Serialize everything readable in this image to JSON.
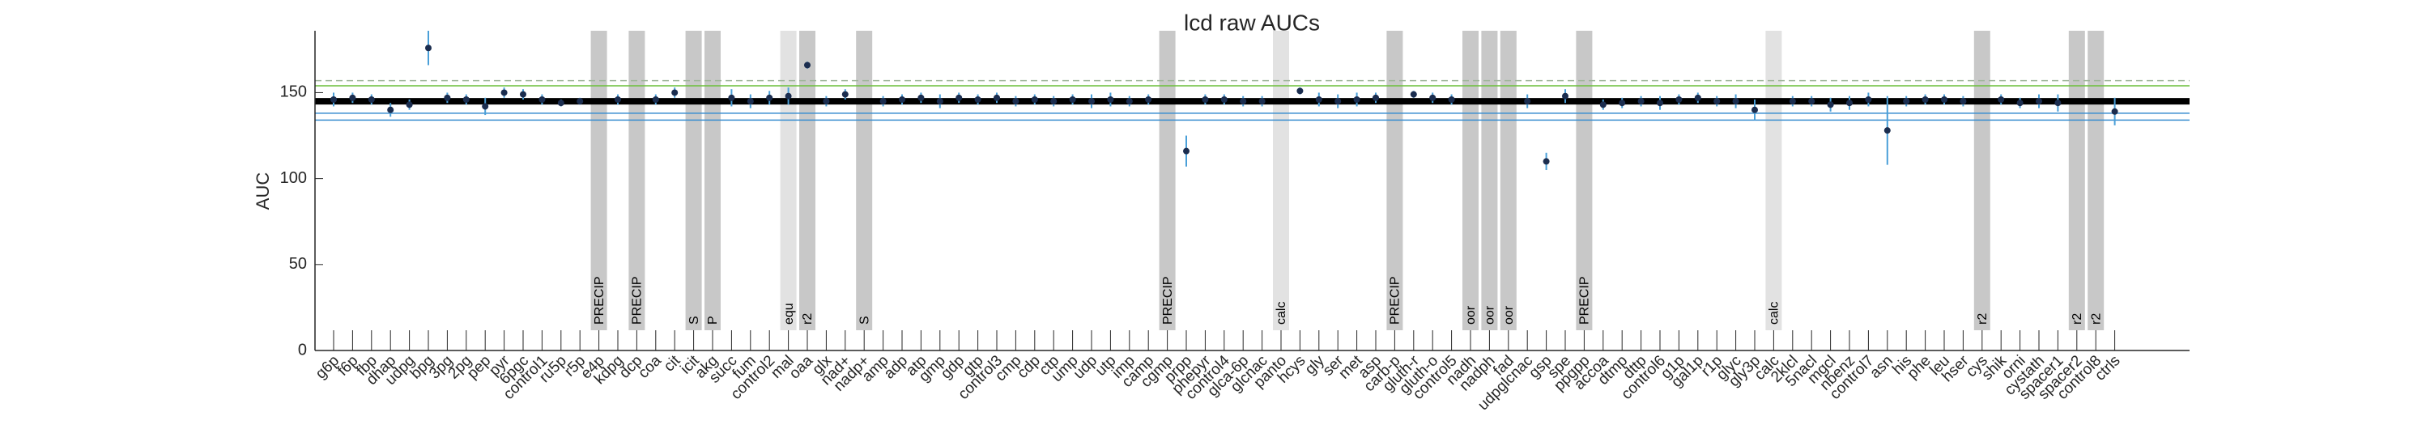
{
  "chart_data": {
    "type": "errorbar",
    "title": "lcd raw AUCs",
    "ylabel": "AUC",
    "categories": [
      "g6p",
      "f6p",
      "fbp",
      "dhap",
      "udpg",
      "bpg",
      "3pg",
      "2pg",
      "pep",
      "pyr",
      "6pgc",
      "control1",
      "ru5p",
      "r5p",
      "e4p",
      "kdpg",
      "dcp",
      "coa",
      "cit",
      "icit",
      "akg",
      "succ",
      "fum",
      "control2",
      "mal",
      "oaa",
      "glx",
      "nad+",
      "nadp+",
      "amp",
      "adp",
      "atp",
      "gmp",
      "gdp",
      "gtp",
      "control3",
      "cmp",
      "cdp",
      "ctp",
      "ump",
      "udp",
      "utp",
      "imp",
      "camp",
      "cgmp",
      "prpp",
      "phepyr",
      "control4",
      "glca-6p",
      "glcnac",
      "panto",
      "hcys",
      "gly",
      "ser",
      "met",
      "asp",
      "carb-p",
      "gluth-r",
      "gluth-o",
      "control5",
      "nadh",
      "nadph",
      "fad",
      "udpglcnac",
      "gsp",
      "spe",
      "ppgpp",
      "accoa",
      "dtmp",
      "dttp",
      "control6",
      "g1p",
      "gal1p",
      "r1p",
      "glyc",
      "gly3p",
      "calc",
      "2klcl",
      "5nacl",
      "mgcl",
      "nbenz",
      "control7",
      "asn",
      "his",
      "phe",
      "leu",
      "hser",
      "cys",
      "shik",
      "orni",
      "cystath",
      "spacer1",
      "spacer2",
      "control8",
      "ctrls"
    ],
    "values": [
      146,
      147,
      146,
      140,
      143,
      176,
      147,
      146,
      142,
      150,
      149,
      146,
      144,
      145,
      null,
      146,
      null,
      146,
      150,
      null,
      null,
      147,
      145,
      147,
      148,
      166,
      145,
      149,
      null,
      145,
      146,
      147,
      145,
      147,
      146,
      147,
      145,
      146,
      145,
      146,
      145,
      146,
      145,
      146,
      null,
      116,
      146,
      146,
      145,
      145,
      null,
      151,
      146,
      145,
      146,
      147,
      null,
      149,
      147,
      146,
      null,
      null,
      null,
      145,
      110,
      148,
      null,
      143,
      144,
      145,
      144,
      146,
      147,
      145,
      145,
      140,
      null,
      145,
      145,
      143,
      144,
      146,
      128,
      145,
      146,
      146,
      145,
      null,
      146,
      144,
      145,
      144,
      null,
      null,
      139
    ],
    "errors": [
      4,
      3,
      3,
      4,
      3,
      10,
      3,
      3,
      5,
      3,
      3,
      3,
      2,
      2,
      null,
      3,
      null,
      3,
      3,
      null,
      null,
      5,
      4,
      4,
      5,
      2,
      3,
      3,
      null,
      3,
      3,
      3,
      4,
      3,
      3,
      3,
      3,
      3,
      3,
      3,
      4,
      4,
      3,
      3,
      null,
      9,
      3,
      3,
      3,
      3,
      null,
      2,
      4,
      4,
      4,
      3,
      null,
      2,
      3,
      3,
      null,
      null,
      null,
      4,
      5,
      4,
      null,
      3,
      3,
      3,
      4,
      3,
      3,
      3,
      4,
      6,
      null,
      3,
      3,
      4,
      4,
      4,
      20,
      3,
      3,
      3,
      3,
      null,
      3,
      3,
      4,
      5,
      null,
      null,
      8
    ],
    "marker_color": "#1b2d4f",
    "errorbar_color": "#4a9fd8",
    "reference_lines": [
      {
        "value": 157,
        "color": "#9fb59a",
        "style": "dashed"
      },
      {
        "value": 154,
        "color": "#6cbf3a",
        "style": "solid"
      },
      {
        "value": 145,
        "color": "#000000",
        "style": "thick"
      },
      {
        "value": 138,
        "color": "#3b8fd0",
        "style": "solid"
      },
      {
        "value": 134,
        "color": "#3b8fd0",
        "style": "solid"
      }
    ],
    "band_annotations": [
      {
        "category": "e4p",
        "text": "PRECIP",
        "color": "#c8c8c8"
      },
      {
        "category": "dcp",
        "text": "PRECIP",
        "color": "#c8c8c8"
      },
      {
        "category": "icit",
        "text": "S",
        "color": "#c8c8c8"
      },
      {
        "category": "akg",
        "text": "P",
        "color": "#c8c8c8"
      },
      {
        "category": "mal",
        "text": "equ",
        "color": "#e2e2e2"
      },
      {
        "category": "oaa",
        "text": "r2",
        "color": "#c8c8c8"
      },
      {
        "category": "nadp+",
        "text": "S",
        "color": "#c8c8c8"
      },
      {
        "category": "cgmp",
        "text": "PRECIP",
        "color": "#c8c8c8"
      },
      {
        "category": "panto",
        "text": "calc",
        "color": "#e2e2e2"
      },
      {
        "category": "carb-p",
        "text": "PRECIP",
        "color": "#c8c8c8"
      },
      {
        "category": "nadh",
        "text": "oor",
        "color": "#c8c8c8"
      },
      {
        "category": "nadph",
        "text": "oor",
        "color": "#c8c8c8"
      },
      {
        "category": "fad",
        "text": "oor",
        "color": "#c8c8c8"
      },
      {
        "category": "ppgpp",
        "text": "PRECIP",
        "color": "#c8c8c8"
      },
      {
        "category": "calc",
        "text": "calc",
        "color": "#e2e2e2"
      },
      {
        "category": "cys",
        "text": "r2",
        "color": "#c8c8c8"
      },
      {
        "category": "spacer2",
        "text": "r2",
        "color": "#c8c8c8"
      },
      {
        "category": "control8",
        "text": "r2",
        "color": "#c8c8c8"
      }
    ],
    "ylim": [
      0,
      186
    ],
    "yticks": [
      0,
      50,
      100,
      150
    ]
  }
}
